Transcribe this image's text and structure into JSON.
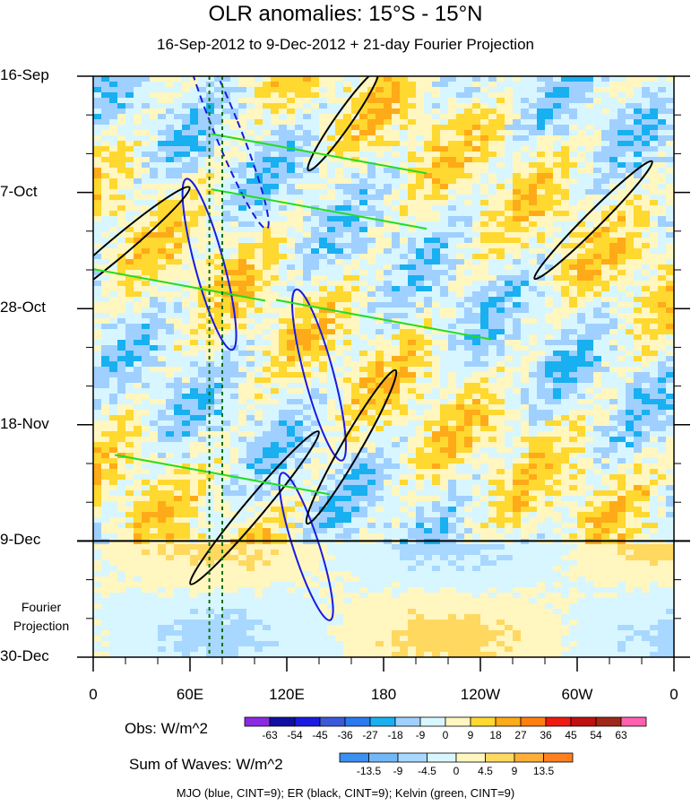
{
  "chart_data": {
    "type": "heatmap",
    "title": "OLR anomalies: 15°S - 15°N",
    "subtitle": "16-Sep-2012 to 9-Dec-2012 + 21-day Fourier Projection",
    "y_tick_labels": [
      "16-Sep",
      "7-Oct",
      "28-Oct",
      "18-Nov",
      "9-Dec",
      "30-Dec"
    ],
    "x_tick_labels": [
      "0",
      "60E",
      "120E",
      "180",
      "120W",
      "60W",
      "0"
    ],
    "xlim": [
      0,
      360
    ],
    "ylim_days": [
      0,
      105
    ],
    "projection_label_line1": "Fourier",
    "projection_label_line2": "Projection",
    "projection_start_day": 84,
    "obs_colorbar": {
      "title": "Obs: W/m^2",
      "levels": [
        -63,
        -54,
        -45,
        -36,
        -27,
        -18,
        -9,
        0,
        9,
        18,
        27,
        36,
        45,
        54,
        63
      ],
      "level_labels": [
        "-63",
        "-54",
        "-45",
        "-36",
        "-27",
        "-18",
        "-9",
        "0",
        "9",
        "18",
        "27",
        "36",
        "45",
        "54",
        "63"
      ],
      "colors": [
        "#8a2be2",
        "#1010a0",
        "#1a1ae0",
        "#3a5ad8",
        "#2a7af0",
        "#18b0f0",
        "#a0d0ff",
        "#d8f6ff",
        "#fff6c0",
        "#ffd830",
        "#ffaa18",
        "#ff7f10",
        "#ee1a10",
        "#c01010",
        "#a02818",
        "#ff60b0"
      ]
    },
    "waves_colorbar": {
      "title": "Sum of Waves: W/m^2",
      "levels": [
        -13.5,
        -9,
        -4.5,
        0,
        4.5,
        9,
        13.5
      ],
      "level_labels": [
        "-13.5",
        "-9",
        "-4.5",
        "0",
        "4.5",
        "9",
        "13.5"
      ],
      "colors": [
        "#3c90f0",
        "#70b8f8",
        "#a8d8ff",
        "#d8f6ff",
        "#fff6c0",
        "#ffd860",
        "#ffae38",
        "#ff8020"
      ]
    },
    "contours_note": "MJO (blue, CINT=9); ER (black, CINT=9); Kelvin (green, CINT=9)",
    "series": [
      {
        "name": "MJO",
        "color": "#1a1ae0",
        "cint": 9,
        "features": [
          {
            "lon": 82,
            "day": 9,
            "sign": "positive",
            "rx": 8,
            "ry": 20,
            "angle": -22
          },
          {
            "lon": 72,
            "day": 34,
            "sign": "negative",
            "rx": 9,
            "ry": 16,
            "angle": -15
          },
          {
            "lon": 140,
            "day": 54,
            "sign": "negative",
            "rx": 9,
            "ry": 16,
            "angle": -15
          },
          {
            "lon": 132,
            "day": 85,
            "sign": "negative",
            "rx": 8,
            "ry": 14,
            "angle": -18
          }
        ]
      },
      {
        "name": "ER",
        "color": "#000000",
        "cint": 9,
        "features": [
          {
            "lon": 155,
            "day": 8,
            "sign": "negative",
            "rx": 5,
            "ry": 11,
            "angle": 35
          },
          {
            "lon": 15,
            "day": 31,
            "sign": "negative",
            "rx": 6,
            "ry": 17,
            "angle": 50
          },
          {
            "lon": 310,
            "day": 26,
            "sign": "negative",
            "rx": 5,
            "ry": 15,
            "angle": 45
          },
          {
            "lon": 160,
            "day": 67,
            "sign": "negative",
            "rx": 6,
            "ry": 16,
            "angle": 30
          },
          {
            "lon": 100,
            "day": 78,
            "sign": "negative",
            "rx": 6,
            "ry": 18,
            "angle": 40
          }
        ]
      },
      {
        "name": "Kelvin",
        "color": "#22dd22",
        "cint": 9,
        "features": [
          {
            "lon": 140,
            "day": 14,
            "sign": "negative"
          },
          {
            "lon": 140,
            "day": 24,
            "sign": "negative"
          },
          {
            "lon": 40,
            "day": 37,
            "sign": "negative"
          },
          {
            "lon": 180,
            "day": 44,
            "sign": "negative"
          },
          {
            "lon": 80,
            "day": 72,
            "sign": "negative"
          }
        ]
      }
    ],
    "vertical_dashed_lines_lon": [
      72,
      80
    ],
    "grid": false
  }
}
